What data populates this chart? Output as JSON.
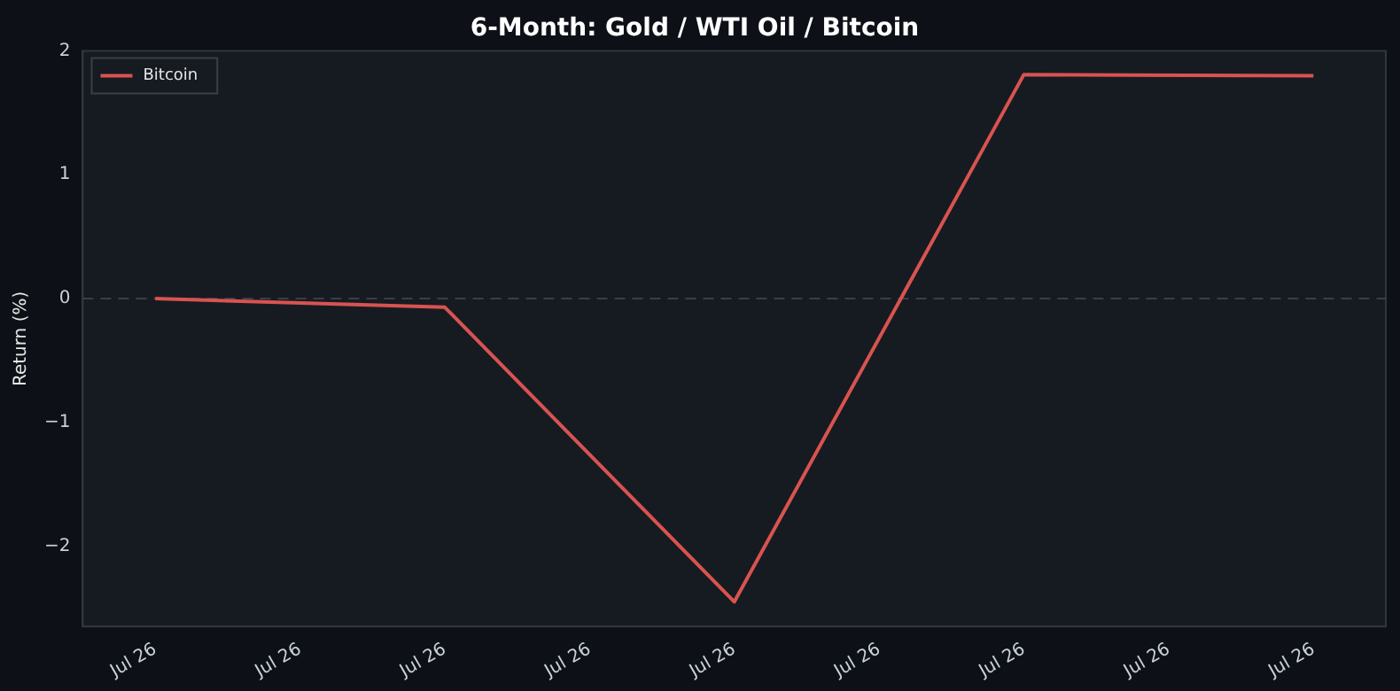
{
  "chart_data": {
    "type": "line",
    "title": "6-Month: Gold / WTI Oil / Bitcoin",
    "ylabel": "Return (%)",
    "categories": [
      "Jul 26",
      "Jul 26",
      "Jul 26",
      "Jul 26",
      "Jul 26",
      "Jul 26",
      "Jul 26",
      "Jul 26",
      "Jul 26"
    ],
    "series": [
      {
        "name": "Bitcoin",
        "color": "#d9534f",
        "values": [
          0,
          null,
          -0.07,
          null,
          -2.45,
          null,
          1.81,
          null,
          1.8
        ]
      }
    ],
    "ylim": [
      -2.65,
      2
    ],
    "yticks": [
      -2,
      -1,
      0,
      1,
      2
    ],
    "ref_lines": [
      {
        "axis": "y",
        "value": 0,
        "color": "#3a3f47",
        "line_style": "dashed"
      }
    ],
    "legend": "top left",
    "grid": false,
    "marker": "none",
    "line_style": "solid"
  }
}
